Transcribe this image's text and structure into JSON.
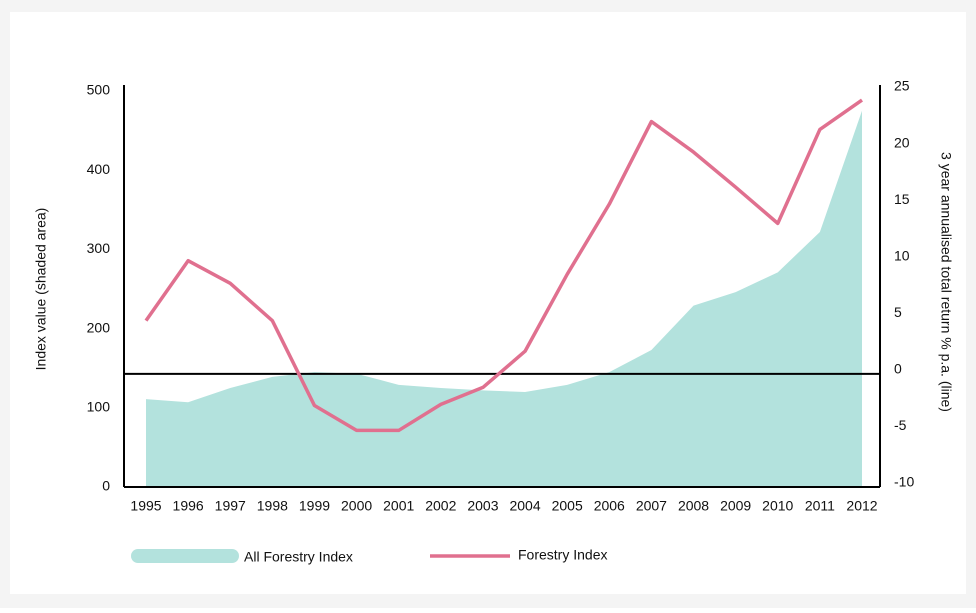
{
  "chart_data": {
    "type": "area-line",
    "categories": [
      "1995",
      "1996",
      "1997",
      "1998",
      "1999",
      "2000",
      "2001",
      "2002",
      "2003",
      "2004",
      "2005",
      "2006",
      "2007",
      "2008",
      "2009",
      "2010",
      "2011",
      "2012"
    ],
    "ylabel": "Index value (shaded area)",
    "y2label": "3 year annualised total return % p.a. (line)",
    "ylim": [
      0,
      500
    ],
    "yticks": [
      0,
      100,
      200,
      300,
      400,
      500
    ],
    "y2lim": [
      -10,
      25
    ],
    "y2ticks": [
      -10,
      -5,
      0,
      5,
      10,
      15,
      20,
      25
    ],
    "legend": "bottom",
    "series": [
      {
        "name": "All Forestry Index",
        "color": "#b3e2dd",
        "kind": "area",
        "values": [
          111,
          107,
          125,
          139,
          145,
          143,
          129,
          125,
          122,
          120,
          129,
          145,
          173,
          229,
          246,
          271,
          322,
          475
        ]
      },
      {
        "name": "Forestry Index",
        "color": "#e0708f",
        "kind": "line",
        "axis": "y2",
        "values": [
          4.7,
          10,
          8,
          4.7,
          -2.8,
          -5,
          -5,
          -2.7,
          -1.2,
          2,
          8.8,
          15,
          22.3,
          19.6,
          16.5,
          13.3,
          21.6,
          24.2
        ]
      }
    ]
  }
}
